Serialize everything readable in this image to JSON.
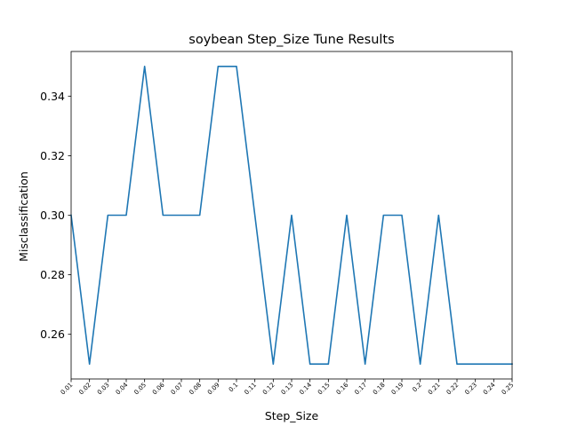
{
  "chart_data": {
    "type": "line",
    "title": "soybean Step_Size Tune Results",
    "xlabel": "Step_Size",
    "ylabel": "Misclassification",
    "categories": [
      "0.01",
      "0.02",
      "0.03",
      "0.04",
      "0.05",
      "0.06",
      "0.07",
      "0.08",
      "0.09",
      "0.1",
      "0.11",
      "0.12",
      "0.13",
      "0.14",
      "0.15",
      "0.16",
      "0.17",
      "0.18",
      "0.19",
      "0.2",
      "0.21",
      "0.22",
      "0.23",
      "0.24",
      "0.25"
    ],
    "series": [
      {
        "values": [
          0.3,
          0.25,
          0.3,
          0.3,
          0.35,
          0.3,
          0.3,
          0.3,
          0.35,
          0.35,
          0.3,
          0.25,
          0.3,
          0.25,
          0.25,
          0.3,
          0.25,
          0.3,
          0.3,
          0.25,
          0.3,
          0.25,
          0.25,
          0.25,
          0.25
        ]
      }
    ],
    "yticks": [
      "0.26",
      "0.28",
      "0.30",
      "0.32",
      "0.34"
    ],
    "ylim": [
      0.245,
      0.355
    ],
    "grid": false,
    "color": "#1f77b4"
  }
}
